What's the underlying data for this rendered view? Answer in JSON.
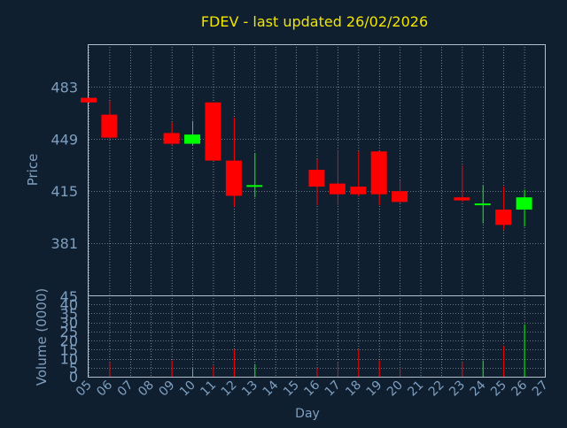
{
  "title": "FDEV - last updated 26/02/2026",
  "colors": {
    "background": "#0f1f30",
    "title": "#f2e600",
    "axis_text": "#7f9fbf",
    "frame": "#b4c0cc",
    "grid": "#ffffff",
    "up": "#00ff00",
    "down": "#ff0000"
  },
  "chart_data": [
    {
      "type": "candlestick",
      "ylabel": "Price",
      "ylim": [
        347,
        511
      ],
      "yticks": [
        381,
        415,
        449,
        483
      ],
      "xticks": [
        "05",
        "06",
        "07",
        "08",
        "09",
        "10",
        "11",
        "12",
        "13",
        "14",
        "15",
        "16",
        "17",
        "18",
        "19",
        "20",
        "21",
        "22",
        "23",
        "24",
        "25",
        "26",
        "27"
      ],
      "grid": true,
      "candles": [
        {
          "day": "05",
          "open": 476,
          "close": 473,
          "high": 476,
          "low": 473
        },
        {
          "day": "06",
          "open": 465,
          "close": 450,
          "high": 474,
          "low": 449
        },
        {
          "day": "09",
          "open": 453,
          "close": 446,
          "high": 460,
          "low": 445
        },
        {
          "day": "10",
          "open": 446,
          "close": 452,
          "high": 461,
          "low": 445
        },
        {
          "day": "11",
          "open": 473,
          "close": 435,
          "high": 473,
          "low": 435
        },
        {
          "day": "12",
          "open": 435,
          "close": 412,
          "high": 463,
          "low": 405
        },
        {
          "day": "13",
          "open": 418,
          "close": 419,
          "high": 440,
          "low": 411
        },
        {
          "day": "16",
          "open": 429,
          "close": 418,
          "high": 436,
          "low": 406
        },
        {
          "day": "17",
          "open": 420,
          "close": 413,
          "high": 442,
          "low": 406
        },
        {
          "day": "18",
          "open": 418,
          "close": 413,
          "high": 441,
          "low": 412
        },
        {
          "day": "19",
          "open": 441,
          "close": 413,
          "high": 441,
          "low": 406
        },
        {
          "day": "20",
          "open": 415,
          "close": 408,
          "high": 422,
          "low": 407
        },
        {
          "day": "23",
          "open": 411,
          "close": 409,
          "high": 432,
          "low": 408
        },
        {
          "day": "24",
          "open": 406,
          "close": 407,
          "high": 419,
          "low": 394
        },
        {
          "day": "25",
          "open": 403,
          "close": 393,
          "high": 418,
          "low": 390
        },
        {
          "day": "26",
          "open": 403,
          "close": 411,
          "high": 416,
          "low": 392
        }
      ]
    },
    {
      "type": "bar",
      "ylabel": "Volume (0000)",
      "xlabel": "Day",
      "ylim": [
        0,
        45
      ],
      "yticks": [
        0,
        5,
        10,
        15,
        20,
        25,
        30,
        35,
        40,
        45
      ],
      "grid": true,
      "bars": [
        {
          "day": "06",
          "value": 8,
          "dir": "down"
        },
        {
          "day": "09",
          "value": 9,
          "dir": "down"
        },
        {
          "day": "10",
          "value": 5,
          "dir": "up"
        },
        {
          "day": "11",
          "value": 6,
          "dir": "down"
        },
        {
          "day": "12",
          "value": 15,
          "dir": "down"
        },
        {
          "day": "13",
          "value": 7,
          "dir": "up"
        },
        {
          "day": "16",
          "value": 5,
          "dir": "down"
        },
        {
          "day": "17",
          "value": 8,
          "dir": "down"
        },
        {
          "day": "18",
          "value": 15,
          "dir": "down"
        },
        {
          "day": "19",
          "value": 9,
          "dir": "down"
        },
        {
          "day": "20",
          "value": 5,
          "dir": "down"
        },
        {
          "day": "23",
          "value": 8,
          "dir": "down"
        },
        {
          "day": "24",
          "value": 9,
          "dir": "up"
        },
        {
          "day": "25",
          "value": 17,
          "dir": "down"
        },
        {
          "day": "26",
          "value": 29,
          "dir": "up"
        }
      ]
    }
  ]
}
